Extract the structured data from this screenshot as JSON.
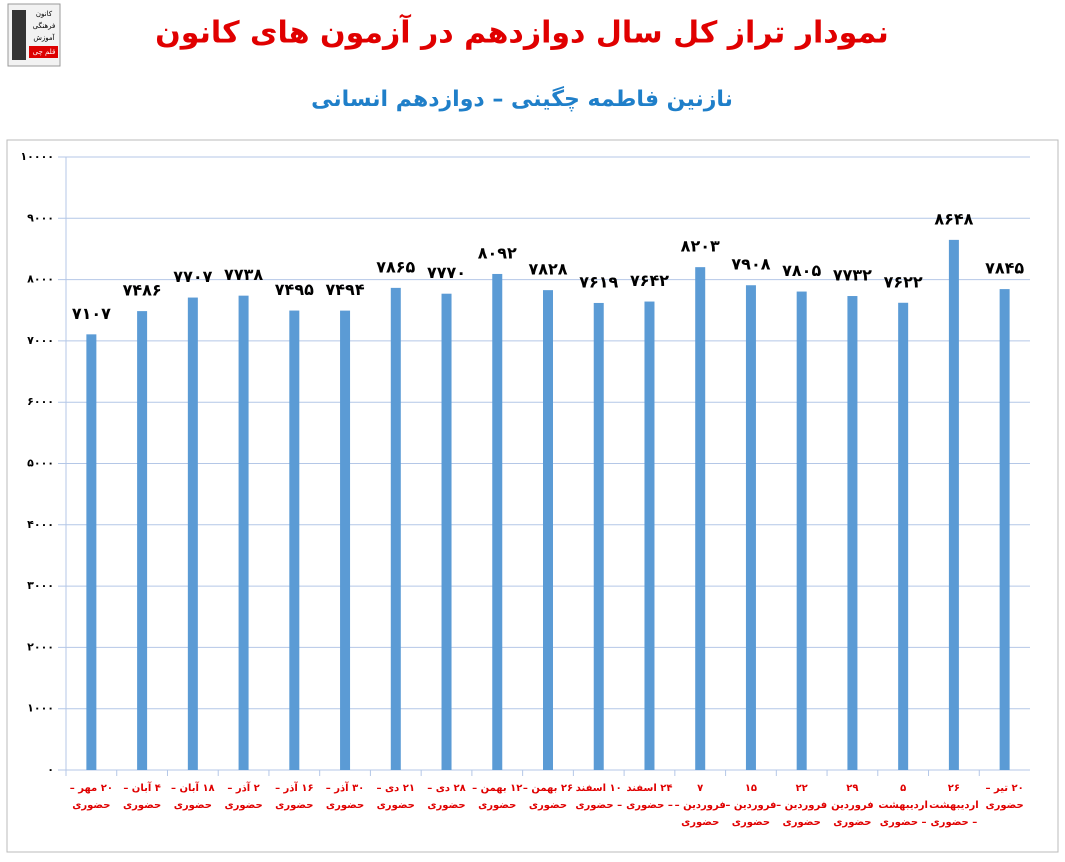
{
  "logo": {
    "lines": [
      "کانون",
      "فرهنگی",
      "آموزش",
      "قلم چی"
    ]
  },
  "chart_data": {
    "type": "bar",
    "title": "نمودار تراز کل سال دوازدهم در آزمون های کانون",
    "subtitle": "نازنین فاطمه چگینی – دوازدهم انسانی",
    "categories": [
      "۲۰ مهر – حضوری",
      "۴ آبان – حضوری",
      "۱۸ آبان – حضوری",
      "۲ آذر – حضوری",
      "۱۶ آذر – حضوری",
      "۳۰ آذر – حضوری",
      "۲۱ دی – حضوری",
      "۲۸ دی – حضوری",
      "۱۲ بهمن – حضوری",
      "۲۶ بهمن – حضوری",
      "۱۰ اسفند – حضوری",
      "۲۴ اسفند – حضوری",
      "۷ فروردین – حضوری",
      "۱۵ فروردین – حضوری",
      "۲۲ فروردین – حضوری",
      "۲۹ فروردین حضوری",
      "۵ اردیبهشت – حضوری",
      "۲۶ اردیبهشت – حضوری",
      "۲۰ تیر – حضوری"
    ],
    "values": [
      7107,
      7486,
      7707,
      7738,
      7495,
      7494,
      7865,
      7770,
      8092,
      7828,
      7619,
      7642,
      8203,
      7908,
      7805,
      7732,
      7622,
      8648,
      7845
    ],
    "value_labels": [
      "۷۱۰۷",
      "۷۴۸۶",
      "۷۷۰۷",
      "۷۷۳۸",
      "۷۴۹۵",
      "۷۴۹۴",
      "۷۸۶۵",
      "۷۷۷۰",
      "۸۰۹۲",
      "۷۸۲۸",
      "۷۶۱۹",
      "۷۶۴۲",
      "۸۲۰۳",
      "۷۹۰۸",
      "۷۸۰۵",
      "۷۷۳۲",
      "۷۶۲۲",
      "۸۶۴۸",
      "۷۸۴۵"
    ],
    "color": "#5b9bd5",
    "ylim": [
      0,
      10000
    ],
    "yticks": [
      {
        "value": 0,
        "label": "۰"
      },
      {
        "value": 1000,
        "label": "۱۰۰۰"
      },
      {
        "value": 2000,
        "label": "۲۰۰۰"
      },
      {
        "value": 3000,
        "label": "۳۰۰۰"
      },
      {
        "value": 4000,
        "label": "۴۰۰۰"
      },
      {
        "value": 5000,
        "label": "۵۰۰۰"
      },
      {
        "value": 6000,
        "label": "۶۰۰۰"
      },
      {
        "value": 7000,
        "label": "۷۰۰۰"
      },
      {
        "value": 8000,
        "label": "۸۰۰۰"
      },
      {
        "value": 9000,
        "label": "۹۰۰۰"
      },
      {
        "value": 10000,
        "label": "۱۰۰۰۰"
      }
    ],
    "grid": true
  }
}
